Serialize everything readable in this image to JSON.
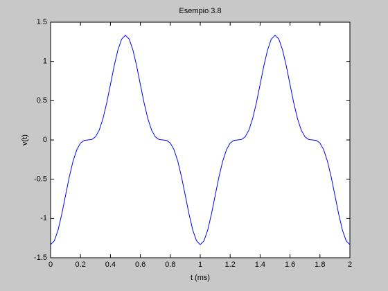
{
  "chart_data": {
    "type": "line",
    "title": "Esempio 3.8",
    "xlabel": "t (ms)",
    "ylabel": "v(t)",
    "x": [
      0,
      0.025,
      0.05,
      0.075,
      0.1,
      0.125,
      0.15,
      0.175,
      0.2,
      0.225,
      0.25,
      0.275,
      0.3,
      0.325,
      0.35,
      0.375,
      0.4,
      0.425,
      0.45,
      0.475,
      0.5,
      0.525,
      0.55,
      0.575,
      0.6,
      0.625,
      0.65,
      0.675,
      0.7,
      0.725,
      0.75,
      0.775,
      0.8,
      0.825,
      0.85,
      0.875,
      0.9,
      0.925,
      0.95,
      0.975,
      1,
      1.025,
      1.05,
      1.075,
      1.1,
      1.125,
      1.15,
      1.175,
      1.2,
      1.225,
      1.25,
      1.275,
      1.3,
      1.325,
      1.35,
      1.375,
      1.4,
      1.425,
      1.45,
      1.475,
      1.5,
      1.525,
      1.55,
      1.575,
      1.6,
      1.625,
      1.65,
      1.675,
      1.7,
      1.725,
      1.75,
      1.775,
      1.8,
      1.825,
      1.85,
      1.875,
      1.9,
      1.925,
      1.95,
      1.975,
      2
    ],
    "values": [
      -1.333,
      -1.285,
      -1.147,
      -0.943,
      -0.706,
      -0.471,
      -0.271,
      -0.125,
      -0.039,
      -0.005,
      0,
      0.005,
      0.039,
      0.125,
      0.271,
      0.471,
      0.706,
      0.943,
      1.147,
      1.285,
      1.333,
      1.285,
      1.147,
      0.943,
      0.706,
      0.471,
      0.271,
      0.125,
      0.039,
      0.005,
      0,
      -0.005,
      -0.039,
      -0.125,
      -0.271,
      -0.471,
      -0.706,
      -0.943,
      -1.147,
      -1.285,
      -1.333,
      -1.285,
      -1.147,
      -0.943,
      -0.706,
      -0.471,
      -0.271,
      -0.125,
      -0.039,
      -0.005,
      0,
      0.005,
      0.039,
      0.125,
      0.271,
      0.471,
      0.706,
      0.943,
      1.147,
      1.285,
      1.333,
      1.285,
      1.147,
      0.943,
      0.706,
      0.471,
      0.271,
      0.125,
      0.039,
      0.005,
      0,
      -0.005,
      -0.039,
      -0.125,
      -0.271,
      -0.471,
      -0.706,
      -0.943,
      -1.147,
      -1.285,
      -1.333
    ],
    "color": "#0000ff",
    "xlim": [
      0,
      2
    ],
    "xticks": [
      0,
      0.2,
      0.4,
      0.6,
      0.8,
      1,
      1.2,
      1.4,
      1.6,
      1.8,
      2
    ],
    "ylim": [
      -1.5,
      1.5
    ],
    "yticks": [
      -1.5,
      -1,
      -0.5,
      0,
      0.5,
      1,
      1.5
    ]
  }
}
